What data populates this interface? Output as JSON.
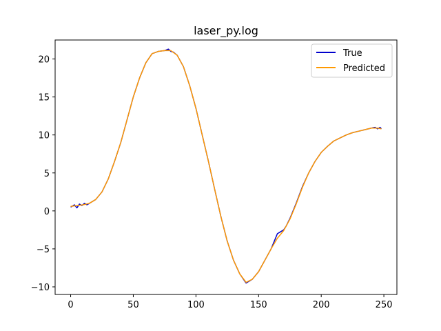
{
  "chart_data": {
    "type": "line",
    "title": "laser_py.log",
    "xlabel": "",
    "ylabel": "",
    "xlim": [
      -12.4,
      260.4
    ],
    "ylim": [
      -11.0,
      22.5
    ],
    "xticks": [
      0,
      50,
      100,
      150,
      200,
      250
    ],
    "yticks": [
      -10,
      -5,
      0,
      5,
      10,
      15,
      20
    ],
    "grid": false,
    "legend_position": "top-right",
    "series": [
      {
        "name": "True",
        "color": "#0000cc",
        "x": [
          0,
          3,
          5,
          7,
          9,
          11,
          13,
          15,
          20,
          25,
          30,
          35,
          40,
          45,
          50,
          55,
          60,
          65,
          70,
          75,
          78,
          80,
          82,
          85,
          90,
          95,
          100,
          105,
          110,
          115,
          120,
          125,
          130,
          135,
          140,
          145,
          150,
          155,
          160,
          163,
          165,
          167,
          170,
          172,
          175,
          180,
          185,
          190,
          195,
          200,
          205,
          210,
          215,
          220,
          225,
          230,
          235,
          240,
          243,
          245,
          247,
          248
        ],
        "values": [
          0.5,
          0.8,
          0.4,
          0.9,
          0.7,
          1.0,
          0.8,
          1.0,
          1.5,
          2.5,
          4.2,
          6.5,
          9.0,
          12.0,
          15.0,
          17.5,
          19.5,
          20.7,
          21.0,
          21.1,
          21.3,
          21.0,
          20.9,
          20.5,
          19.0,
          16.5,
          13.5,
          10.0,
          6.5,
          2.8,
          -0.8,
          -4.0,
          -6.5,
          -8.3,
          -9.5,
          -9.0,
          -8.0,
          -6.5,
          -5.0,
          -3.8,
          -3.0,
          -2.8,
          -2.5,
          -2.0,
          -1.0,
          1.0,
          3.2,
          5.0,
          6.5,
          7.7,
          8.5,
          9.2,
          9.6,
          10.0,
          10.3,
          10.5,
          10.7,
          10.9,
          11.0,
          10.8,
          11.0,
          10.8
        ]
      },
      {
        "name": "Predicted",
        "color": "#ff9900",
        "x": [
          0,
          5,
          10,
          15,
          20,
          25,
          30,
          35,
          40,
          45,
          50,
          55,
          60,
          65,
          70,
          75,
          80,
          85,
          90,
          95,
          100,
          105,
          110,
          115,
          120,
          125,
          130,
          135,
          140,
          145,
          150,
          155,
          160,
          165,
          170,
          175,
          180,
          185,
          190,
          195,
          200,
          205,
          210,
          215,
          220,
          225,
          230,
          235,
          240,
          245,
          248
        ],
        "values": [
          0.6,
          0.7,
          0.8,
          1.0,
          1.5,
          2.5,
          4.2,
          6.5,
          9.0,
          12.0,
          15.0,
          17.5,
          19.5,
          20.7,
          21.0,
          21.1,
          21.1,
          20.5,
          19.0,
          16.5,
          13.5,
          10.0,
          6.5,
          2.8,
          -0.8,
          -4.0,
          -6.5,
          -8.3,
          -9.4,
          -9.0,
          -8.0,
          -6.5,
          -5.0,
          -3.6,
          -2.6,
          -1.1,
          0.9,
          3.1,
          5.0,
          6.5,
          7.7,
          8.5,
          9.2,
          9.6,
          10.0,
          10.3,
          10.5,
          10.7,
          10.9,
          10.9,
          10.8
        ]
      }
    ]
  }
}
